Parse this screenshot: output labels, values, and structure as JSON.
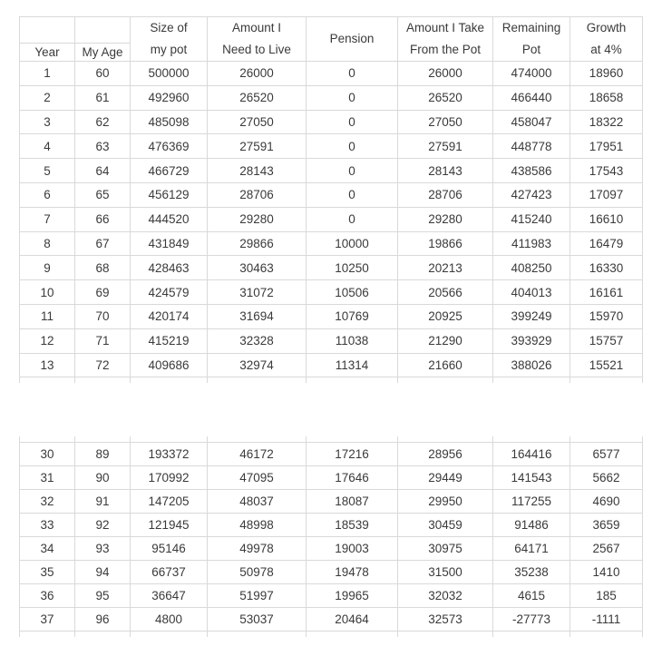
{
  "colors": {
    "gridline": "#d9d9d9",
    "text": "#3a3a3a",
    "background": "#ffffff"
  },
  "table": {
    "header_top": [
      "",
      "",
      "Size of",
      "Amount I",
      "Pension",
      "Amount I Take",
      "Remaining",
      "Growth"
    ],
    "header_bottom": [
      "Year",
      "My Age",
      "my pot",
      "Need to Live",
      "",
      "From the Pot",
      "Pot",
      "at 4%"
    ],
    "columns": [
      "Year",
      "My Age",
      "Size of my pot",
      "Amount I Need to Live",
      "Pension",
      "Amount I Take From the Pot",
      "Remaining Pot",
      "Growth at 4%"
    ],
    "sections": [
      {
        "name": "years-1-to-13",
        "rows": [
          [
            1,
            60,
            500000,
            26000,
            0,
            26000,
            474000,
            18960
          ],
          [
            2,
            61,
            492960,
            26520,
            0,
            26520,
            466440,
            18658
          ],
          [
            3,
            62,
            485098,
            27050,
            0,
            27050,
            458047,
            18322
          ],
          [
            4,
            63,
            476369,
            27591,
            0,
            27591,
            448778,
            17951
          ],
          [
            5,
            64,
            466729,
            28143,
            0,
            28143,
            438586,
            17543
          ],
          [
            6,
            65,
            456129,
            28706,
            0,
            28706,
            427423,
            17097
          ],
          [
            7,
            66,
            444520,
            29280,
            0,
            29280,
            415240,
            16610
          ],
          [
            8,
            67,
            431849,
            29866,
            10000,
            19866,
            411983,
            16479
          ],
          [
            9,
            68,
            428463,
            30463,
            10250,
            20213,
            408250,
            16330
          ],
          [
            10,
            69,
            424579,
            31072,
            10506,
            20566,
            404013,
            16161
          ],
          [
            11,
            70,
            420174,
            31694,
            10769,
            20925,
            399249,
            15970
          ],
          [
            12,
            71,
            415219,
            32328,
            11038,
            21290,
            393929,
            15757
          ],
          [
            13,
            72,
            409686,
            32974,
            11314,
            21660,
            388026,
            15521
          ]
        ]
      },
      {
        "name": "years-30-to-37",
        "rows": [
          [
            30,
            89,
            193372,
            46172,
            17216,
            28956,
            164416,
            6577
          ],
          [
            31,
            90,
            170992,
            47095,
            17646,
            29449,
            141543,
            5662
          ],
          [
            32,
            91,
            147205,
            48037,
            18087,
            29950,
            117255,
            4690
          ],
          [
            33,
            92,
            121945,
            48998,
            18539,
            30459,
            91486,
            3659
          ],
          [
            34,
            93,
            95146,
            49978,
            19003,
            30975,
            64171,
            2567
          ],
          [
            35,
            94,
            66737,
            50978,
            19478,
            31500,
            35238,
            1410
          ],
          [
            36,
            95,
            36647,
            51997,
            19965,
            32032,
            4615,
            185
          ],
          [
            37,
            96,
            4800,
            53037,
            20464,
            32573,
            -27773,
            -1111
          ]
        ]
      }
    ]
  }
}
